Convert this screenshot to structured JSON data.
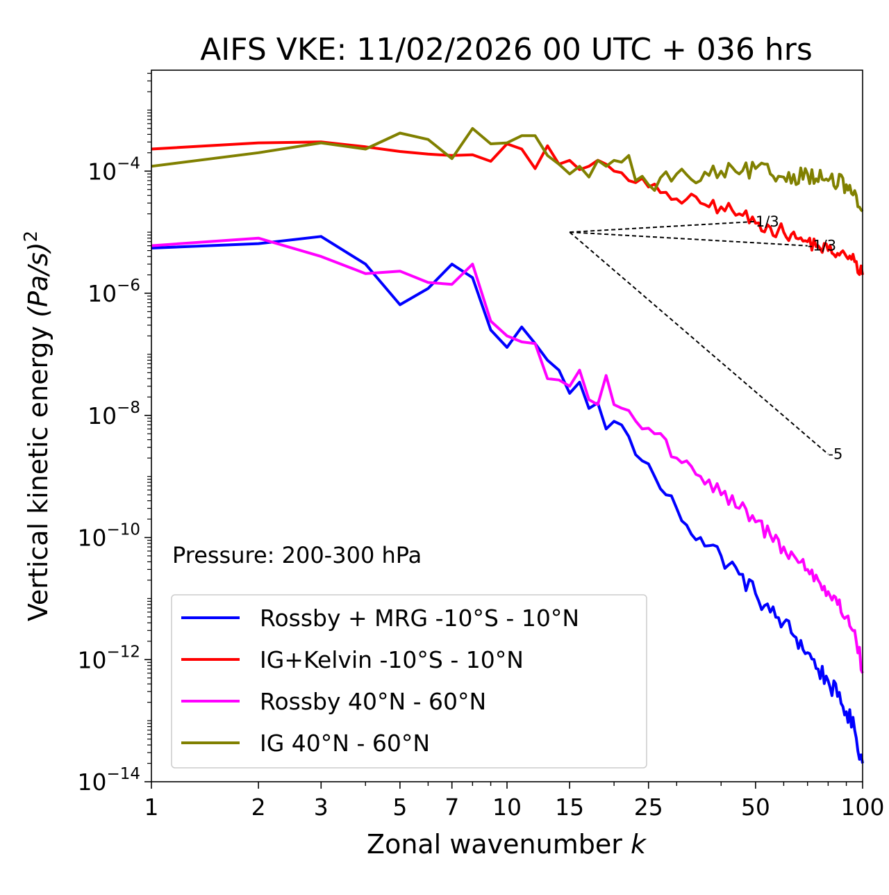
{
  "chart_data": {
    "type": "line",
    "title": "AIFS VKE: 11/02/2026 00 UTC + 036 hrs",
    "xlabel": "Zonal wavenumber",
    "xlabel_var": "k",
    "ylabel": "Vertical kinetic energy",
    "ylabel_units": "(Pa/s)",
    "ylabel_power": "2",
    "xscale": "log",
    "yscale": "log",
    "xlim": [
      1,
      100
    ],
    "ylim": [
      1e-14,
      0.0045
    ],
    "x_ticks": [
      1,
      2,
      3,
      5,
      7,
      10,
      15,
      25,
      50,
      100
    ],
    "x_tick_labels": [
      "1",
      "2",
      "3",
      "5",
      "7",
      "10",
      "15",
      "25",
      "50",
      "100"
    ],
    "y_ticks": [
      1e-14,
      1e-12,
      1e-10,
      1e-08,
      1e-06,
      0.0001
    ],
    "y_tick_labels": [
      {
        "base": "10",
        "exp": "−14"
      },
      {
        "base": "10",
        "exp": "−12"
      },
      {
        "base": "10",
        "exp": "−10"
      },
      {
        "base": "10",
        "exp": "−8"
      },
      {
        "base": "10",
        "exp": "−6"
      },
      {
        "base": "10",
        "exp": "−4"
      }
    ],
    "annotation": "Pressure: 200-300 hPa",
    "legend_position": "lower-left",
    "series": [
      {
        "name": "Rossby + MRG -10°S - 10°N",
        "color": "#0000ff",
        "anchors": [
          [
            1,
            5.5e-06
          ],
          [
            2,
            6.5e-06
          ],
          [
            3,
            8.5e-06
          ],
          [
            4,
            3e-06
          ],
          [
            5,
            6.5e-07
          ],
          [
            6,
            1.2e-06
          ],
          [
            7,
            3e-06
          ],
          [
            8,
            1.8e-06
          ],
          [
            9,
            2.5e-07
          ],
          [
            10,
            1.3e-07
          ],
          [
            11,
            2.8e-07
          ],
          [
            12,
            1.5e-07
          ],
          [
            13,
            8e-08
          ],
          [
            14,
            5.5e-08
          ],
          [
            15,
            2.3e-08
          ],
          [
            16,
            3.5e-08
          ],
          [
            17,
            1.3e-08
          ],
          [
            18,
            1.6e-08
          ],
          [
            19,
            6e-09
          ],
          [
            20,
            8e-09
          ],
          [
            22,
            4.5e-09
          ],
          [
            24,
            1.8e-09
          ],
          [
            26,
            1e-09
          ],
          [
            28,
            5e-10
          ],
          [
            30,
            3e-10
          ],
          [
            32,
            1.6e-10
          ],
          [
            35,
            1e-10
          ],
          [
            40,
            5e-11
          ],
          [
            45,
            2.5e-11
          ],
          [
            50,
            1.2e-11
          ],
          [
            55,
            6e-12
          ],
          [
            60,
            4e-12
          ],
          [
            65,
            2.3e-12
          ],
          [
            70,
            1.3e-12
          ],
          [
            75,
            7e-13
          ],
          [
            80,
            4.5e-13
          ],
          [
            85,
            2.5e-13
          ],
          [
            90,
            1.4e-13
          ],
          [
            95,
            7e-14
          ],
          [
            100,
            2e-14
          ]
        ],
        "noise": 0.32
      },
      {
        "name": "IG+Kelvin -10°S - 10°N",
        "color": "#ff0000",
        "anchors": [
          [
            1,
            0.00023
          ],
          [
            2,
            0.00029
          ],
          [
            3,
            0.0003
          ],
          [
            4,
            0.00025
          ],
          [
            5,
            0.00021
          ],
          [
            6,
            0.00019
          ],
          [
            7,
            0.00018
          ],
          [
            8,
            0.000185
          ],
          [
            9,
            0.000145
          ],
          [
            10,
            0.00028
          ],
          [
            11,
            0.00023
          ],
          [
            12,
            0.00011
          ],
          [
            13,
            0.00026
          ],
          [
            14,
            0.00013
          ],
          [
            15,
            0.00015
          ],
          [
            17,
            0.00012
          ],
          [
            19,
            0.00013
          ],
          [
            20,
            0.0001
          ],
          [
            22,
            7e-05
          ],
          [
            25,
            5.5e-05
          ],
          [
            28,
            4.5e-05
          ],
          [
            30,
            3.5e-05
          ],
          [
            35,
            3e-05
          ],
          [
            40,
            2.6e-05
          ],
          [
            45,
            2e-05
          ],
          [
            50,
            1.4e-05
          ],
          [
            55,
            1.2e-05
          ],
          [
            60,
            1e-05
          ],
          [
            65,
            8e-06
          ],
          [
            70,
            7e-06
          ],
          [
            75,
            6e-06
          ],
          [
            80,
            5e-06
          ],
          [
            85,
            4.5e-06
          ],
          [
            90,
            4e-06
          ],
          [
            95,
            3.3e-06
          ],
          [
            100,
            2e-06
          ]
        ],
        "noise": 0.25
      },
      {
        "name": "Rossby 40°N - 60°N",
        "color": "#ff00ff",
        "anchors": [
          [
            1,
            6e-06
          ],
          [
            2,
            8e-06
          ],
          [
            3,
            4e-06
          ],
          [
            4,
            2.1e-06
          ],
          [
            5,
            2.3e-06
          ],
          [
            6,
            1.5e-06
          ],
          [
            7,
            1.4e-06
          ],
          [
            8,
            3e-06
          ],
          [
            9,
            3.5e-07
          ],
          [
            10,
            2e-07
          ],
          [
            11,
            1.6e-07
          ],
          [
            12,
            1.5e-07
          ],
          [
            13,
            4e-08
          ],
          [
            14,
            3.8e-08
          ],
          [
            15,
            3e-08
          ],
          [
            16,
            5.5e-08
          ],
          [
            17,
            1.8e-08
          ],
          [
            18,
            1.5e-08
          ],
          [
            19,
            4.5e-08
          ],
          [
            20,
            1.5e-08
          ],
          [
            22,
            1.2e-08
          ],
          [
            24,
            6e-09
          ],
          [
            26,
            5e-09
          ],
          [
            28,
            4e-09
          ],
          [
            30,
            2e-09
          ],
          [
            32,
            1.8e-09
          ],
          [
            35,
            1e-09
          ],
          [
            40,
            5e-10
          ],
          [
            45,
            3e-10
          ],
          [
            50,
            1.8e-10
          ],
          [
            55,
            1.1e-10
          ],
          [
            60,
            7e-11
          ],
          [
            65,
            4.5e-11
          ],
          [
            70,
            3e-11
          ],
          [
            75,
            2e-11
          ],
          [
            80,
            1.3e-11
          ],
          [
            85,
            8e-12
          ],
          [
            90,
            5e-12
          ],
          [
            95,
            3e-12
          ],
          [
            100,
            6e-13
          ]
        ],
        "noise": 0.3
      },
      {
        "name": "IG 40°N - 60°N",
        "color": "#808000",
        "anchors": [
          [
            1,
            0.00012
          ],
          [
            2,
            0.0002
          ],
          [
            3,
            0.00029
          ],
          [
            4,
            0.00023
          ],
          [
            5,
            0.00042
          ],
          [
            6,
            0.00033
          ],
          [
            7,
            0.00016
          ],
          [
            8,
            0.0005
          ],
          [
            9,
            0.00028
          ],
          [
            10,
            0.00029
          ],
          [
            11,
            0.00038
          ],
          [
            12,
            0.00038
          ],
          [
            13,
            0.00018
          ],
          [
            14,
            0.00013
          ],
          [
            15,
            9e-05
          ],
          [
            16,
            0.00012
          ],
          [
            17,
            8e-05
          ],
          [
            18,
            0.00015
          ],
          [
            19,
            0.00012
          ],
          [
            20,
            0.00015
          ],
          [
            21,
            0.00014
          ],
          [
            22,
            0.00018
          ],
          [
            23,
            7e-05
          ],
          [
            25,
            6e-05
          ],
          [
            30,
            9e-05
          ],
          [
            35,
            7e-05
          ],
          [
            40,
            0.0001
          ],
          [
            45,
            9e-05
          ],
          [
            50,
            0.00011
          ],
          [
            55,
            9e-05
          ],
          [
            60,
            8e-05
          ],
          [
            70,
            9e-05
          ],
          [
            80,
            7e-05
          ],
          [
            90,
            6e-05
          ],
          [
            100,
            2.2e-05
          ]
        ],
        "noise": 0.3
      }
    ],
    "reference_lines": [
      {
        "label": "1/3",
        "x0": 15,
        "y0": 1e-05,
        "x1": 50,
        "slope": 0.3333
      },
      {
        "label": "-1/3",
        "x0": 15,
        "y0": 1e-05,
        "x1": 70,
        "slope": -0.3333
      },
      {
        "label": "-5",
        "x0": 15,
        "y0": 1e-05,
        "x1": 80,
        "slope": -5
      }
    ]
  }
}
